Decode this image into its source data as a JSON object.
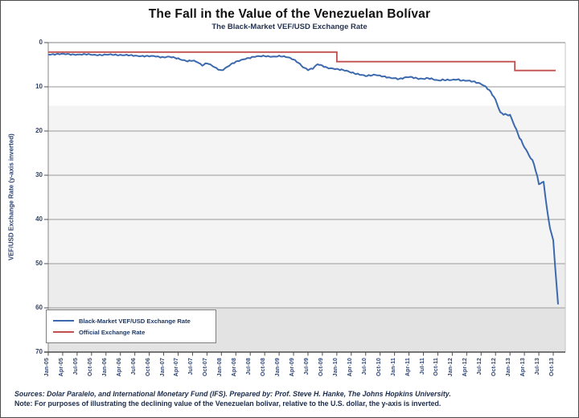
{
  "title": "The Fall in the Value of the Venezuelan Bolívar",
  "subtitle": "The Black-Market VEF/USD Exchange Rate",
  "y_axis": {
    "label": "VEF/USD Exchange Rate (y-axis inverted)",
    "ticks": [
      0,
      10,
      20,
      30,
      40,
      50,
      60,
      70
    ],
    "min": 0,
    "max": 70,
    "inverted": true
  },
  "x_axis": {
    "tick_labels": [
      "Jan-05",
      "Apr-05",
      "Jul-05",
      "Oct-05",
      "Jan-06",
      "Apr-06",
      "Jul-06",
      "Oct-06",
      "Jan-07",
      "Apr-07",
      "Jul-07",
      "Oct-07",
      "Jan-08",
      "Apr-08",
      "Jul-08",
      "Oct-08",
      "Jan-09",
      "Apr-09",
      "Jul-09",
      "Oct-09",
      "Jan-10",
      "Apr-10",
      "Jul-10",
      "Oct-10",
      "Jan-11",
      "Apr-11",
      "Jul-11",
      "Oct-11",
      "Jan-12",
      "Apr-12",
      "Jul-12",
      "Oct-12",
      "Jan-13",
      "Apr-13",
      "Jul-13",
      "Oct-13"
    ]
  },
  "legend": [
    {
      "label": "Black-Market VEF/USD Exchange Rate",
      "color": "#3c69ae"
    },
    {
      "label": "Official Exchange Rate",
      "color": "#c0504d"
    }
  ],
  "footer": {
    "sources": "Sources: Dolar Paralelo, and International Monetary Fund (IFS). Prepared by: Prof. Steve H. Hanke, The Johns Hopkins University.",
    "note": "Note: For purposes of illustrating the declining value of the Venezuelan bolivar, relative to the U.S. dollar, the y-axis is inverted."
  },
  "chart_data": {
    "type": "line",
    "title": "The Fall in the Value of the Venezuelan Bolívar",
    "subtitle": "The Black-Market VEF/USD Exchange Rate",
    "xlabel": "",
    "ylabel": "VEF/USD Exchange Rate (y-axis inverted)",
    "ylim": [
      0,
      70
    ],
    "y_inverted": true,
    "grid": "horizontal",
    "legend_position": "bottom-left-inside",
    "x_start": "Jan-2005",
    "x_end": "Nov-2013",
    "frequency": "monthly",
    "series": [
      {
        "name": "Black-Market VEF/USD Exchange Rate",
        "color": "#3c69ae",
        "monthly_values": [
          2.7,
          2.62,
          2.58,
          2.6,
          2.63,
          2.66,
          2.68,
          2.7,
          2.68,
          2.72,
          2.76,
          2.8,
          2.76,
          2.72,
          2.74,
          2.78,
          2.84,
          2.9,
          2.95,
          3.0,
          3.05,
          3.1,
          3.06,
          3.18,
          3.3,
          3.22,
          3.4,
          3.6,
          3.9,
          4.2,
          4.1,
          4.4,
          5.1,
          4.6,
          5.2,
          5.9,
          6.3,
          5.6,
          4.9,
          4.4,
          4.0,
          3.6,
          3.4,
          3.2,
          3.1,
          3.0,
          3.1,
          3.2,
          3.1,
          3.15,
          3.3,
          3.8,
          4.6,
          5.6,
          6.1,
          5.8,
          4.9,
          5.3,
          5.7,
          5.8,
          6.0,
          6.2,
          6.4,
          6.7,
          7.0,
          7.3,
          7.6,
          7.4,
          7.2,
          7.5,
          7.8,
          8.0,
          8.0,
          8.2,
          8.0,
          7.8,
          7.9,
          8.1,
          8.2,
          8.1,
          8.3,
          8.5,
          8.4,
          8.5,
          8.5,
          8.3,
          8.5,
          8.6,
          8.8,
          9.0,
          9.3,
          10.0,
          11.2,
          13.0,
          15.8,
          16.2,
          16.4,
          19.0,
          21.5,
          23.5,
          25.5,
          27.5,
          32.0,
          31.5,
          40.0,
          45.0,
          59.5
        ]
      },
      {
        "name": "Official Exchange Rate",
        "color": "#c0504d",
        "step_points": [
          [
            0,
            2.15
          ],
          [
            60,
            2.15
          ],
          [
            60,
            4.3
          ],
          [
            97,
            4.3
          ],
          [
            97,
            6.3
          ],
          [
            105.5,
            6.3
          ]
        ]
      }
    ]
  }
}
